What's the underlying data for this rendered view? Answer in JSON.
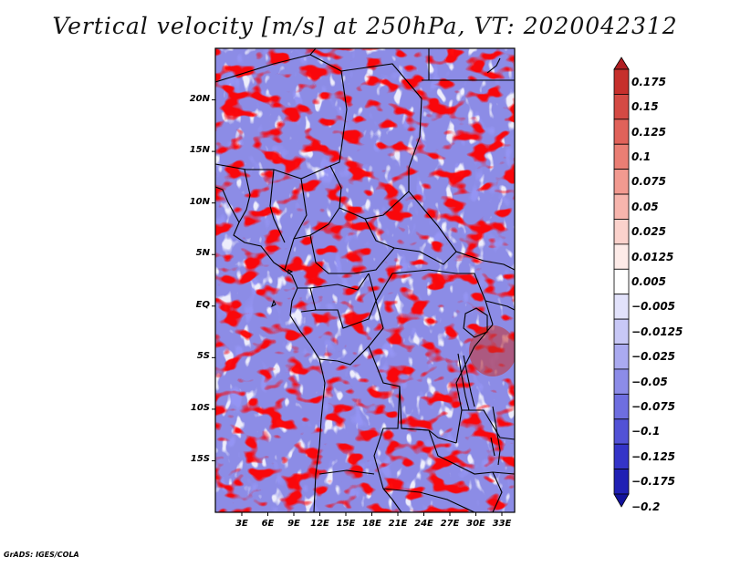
{
  "title": "Vertical velocity [m/s] at 250hPa, VT: 2020042312",
  "credit": "GrADS: IGES/COLA",
  "map": {
    "lon_range": [
      0,
      35
    ],
    "lat_range": [
      -20,
      25
    ],
    "lat_ticks": [
      {
        "value": 20,
        "label": "20N"
      },
      {
        "value": 15,
        "label": "15N"
      },
      {
        "value": 10,
        "label": "10N"
      },
      {
        "value": 5,
        "label": "5N"
      },
      {
        "value": 0,
        "label": "EQ"
      },
      {
        "value": -5,
        "label": "5S"
      },
      {
        "value": -10,
        "label": "10S"
      },
      {
        "value": -15,
        "label": "15S"
      }
    ],
    "lon_ticks": [
      {
        "value": 3,
        "label": "3E"
      },
      {
        "value": 6,
        "label": "6E"
      },
      {
        "value": 9,
        "label": "9E"
      },
      {
        "value": 12,
        "label": "12E"
      },
      {
        "value": 15,
        "label": "15E"
      },
      {
        "value": 18,
        "label": "18E"
      },
      {
        "value": 21,
        "label": "21E"
      },
      {
        "value": 24,
        "label": "24E"
      },
      {
        "value": 27,
        "label": "27E"
      },
      {
        "value": 30,
        "label": "30E"
      },
      {
        "value": 33,
        "label": "33E"
      }
    ]
  },
  "colorbar": {
    "levels": [
      "0.175",
      "0.15",
      "0.125",
      "0.1",
      "0.075",
      "0.05",
      "0.025",
      "0.0125",
      "0.005",
      "−0.005",
      "−0.0125",
      "−0.025",
      "−0.05",
      "−0.075",
      "−0.1",
      "−0.125",
      "−0.175",
      "−0.2"
    ],
    "colors": [
      "#b01e22",
      "#c6302c",
      "#d44a44",
      "#e0625a",
      "#ea7e74",
      "#f29a90",
      "#f7b5ad",
      "#fbd2cc",
      "#fdebe8",
      "#ffffff",
      "#e2e2fb",
      "#c8c8f6",
      "#aaaaf0",
      "#8c8ce8",
      "#6e6ee0",
      "#5252d6",
      "#3434c8",
      "#2020b4",
      "#12129c"
    ]
  }
}
